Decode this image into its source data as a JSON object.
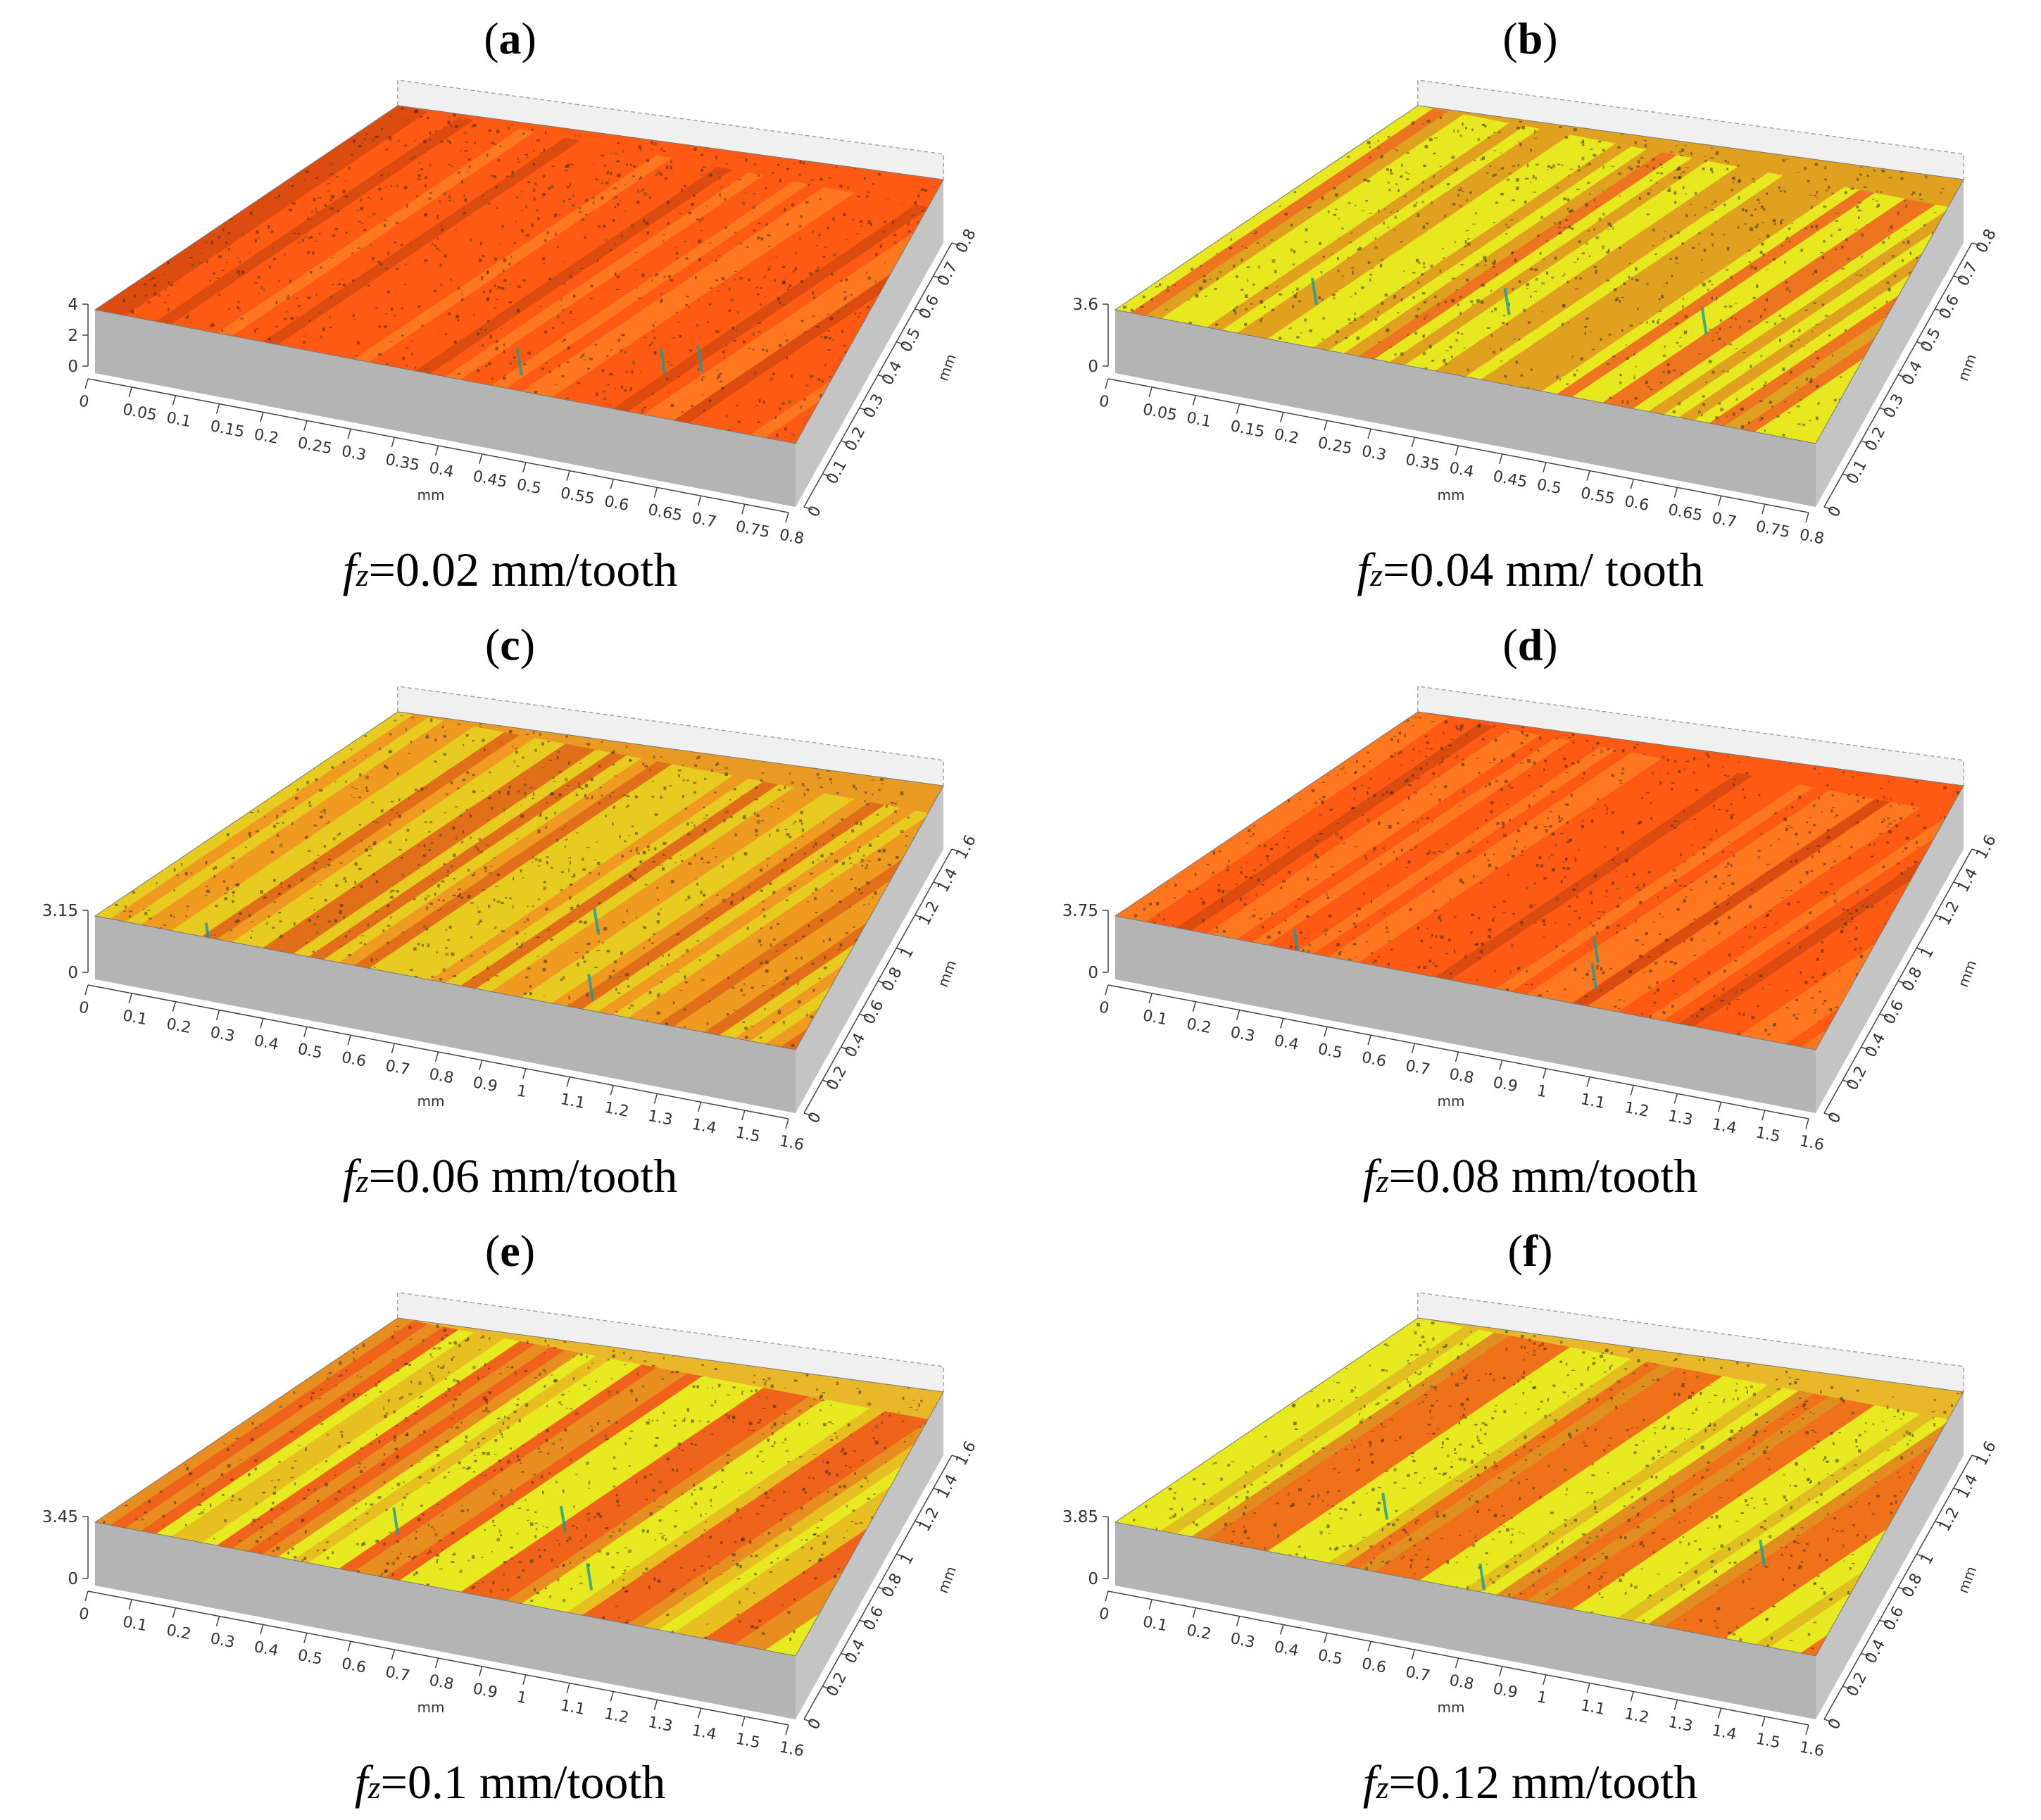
{
  "colors": {
    "high": "#ff5a14",
    "mid": "#e0a020",
    "low": "#e8f020",
    "deep": "#1a9a9a",
    "wall": "#b4b4b4"
  },
  "panels": [
    {
      "letter": "a",
      "caption_value": "=0.02 mm/tooth",
      "x_ticks": [
        "0",
        "0.05",
        "0.1",
        "0.15",
        "0.2",
        "0.25",
        "0.3",
        "0.35",
        "0.4",
        "0.45",
        "0.5",
        "0.55",
        "0.6",
        "0.65",
        "0.7",
        "0.75",
        "0.8"
      ],
      "y_ticks": [
        "0",
        "0.1",
        "0.2",
        "0.3",
        "0.4",
        "0.5",
        "0.6",
        "0.7",
        "0.8"
      ],
      "z_ticks": [
        "0",
        "2",
        "4"
      ],
      "x_unit": "mm",
      "y_unit": "mm",
      "style": "red"
    },
    {
      "letter": "b",
      "caption_value": "=0.04 mm/ tooth",
      "x_ticks": [
        "0",
        "0.05",
        "0.1",
        "0.15",
        "0.2",
        "0.25",
        "0.3",
        "0.35",
        "0.4",
        "0.45",
        "0.5",
        "0.55",
        "0.6",
        "0.65",
        "0.7",
        "0.75",
        "0.8"
      ],
      "y_ticks": [
        "0",
        "0.1",
        "0.2",
        "0.3",
        "0.4",
        "0.5",
        "0.6",
        "0.7",
        "0.8"
      ],
      "z_ticks": [
        "0",
        "3.6"
      ],
      "x_unit": "mm",
      "y_unit": "mm",
      "style": "yellow"
    },
    {
      "letter": "c",
      "caption_value": "=0.06 mm/tooth",
      "x_ticks": [
        "0",
        "0.1",
        "0.2",
        "0.3",
        "0.4",
        "0.5",
        "0.6",
        "0.7",
        "0.8",
        "0.9",
        "1",
        "1.1",
        "1.2",
        "1.3",
        "1.4",
        "1.5",
        "1.6"
      ],
      "y_ticks": [
        "0",
        "0.2",
        "0.4",
        "0.6",
        "0.8",
        "1",
        "1.2",
        "1.4",
        "1.6"
      ],
      "z_ticks": [
        "0",
        "3.15"
      ],
      "x_unit": "mm",
      "y_unit": "mm",
      "style": "orange"
    },
    {
      "letter": "d",
      "caption_value": "=0.08 mm/tooth",
      "x_ticks": [
        "0",
        "0.1",
        "0.2",
        "0.3",
        "0.4",
        "0.5",
        "0.6",
        "0.7",
        "0.8",
        "0.9",
        "1",
        "1.1",
        "1.2",
        "1.3",
        "1.4",
        "1.5",
        "1.6"
      ],
      "y_ticks": [
        "0",
        "0.2",
        "0.4",
        "0.6",
        "0.8",
        "1",
        "1.2",
        "1.4",
        "1.6"
      ],
      "z_ticks": [
        "0",
        "3.75"
      ],
      "x_unit": "mm",
      "y_unit": "mm",
      "style": "red"
    },
    {
      "letter": "e",
      "caption_value": "=0.1 mm/tooth",
      "x_ticks": [
        "0",
        "0.1",
        "0.2",
        "0.3",
        "0.4",
        "0.5",
        "0.6",
        "0.7",
        "0.8",
        "0.9",
        "1",
        "1.1",
        "1.2",
        "1.3",
        "1.4",
        "1.5",
        "1.6"
      ],
      "y_ticks": [
        "0",
        "0.2",
        "0.4",
        "0.6",
        "0.8",
        "1",
        "1.2",
        "1.4",
        "1.6"
      ],
      "z_ticks": [
        "0",
        "3.45"
      ],
      "x_unit": "mm",
      "y_unit": "mm",
      "style": "banded"
    },
    {
      "letter": "f",
      "caption_value": "=0.12 mm/tooth",
      "x_ticks": [
        "0",
        "0.1",
        "0.2",
        "0.3",
        "0.4",
        "0.5",
        "0.6",
        "0.7",
        "0.8",
        "0.9",
        "1",
        "1.1",
        "1.2",
        "1.3",
        "1.4",
        "1.5",
        "1.6"
      ],
      "y_ticks": [
        "0",
        "0.2",
        "0.4",
        "0.6",
        "0.8",
        "1",
        "1.2",
        "1.4",
        "1.6"
      ],
      "z_ticks": [
        "0",
        "3.85"
      ],
      "x_unit": "mm",
      "y_unit": "mm",
      "style": "banded-yellow"
    }
  ],
  "caption_symbol": "f",
  "caption_sub": "z"
}
